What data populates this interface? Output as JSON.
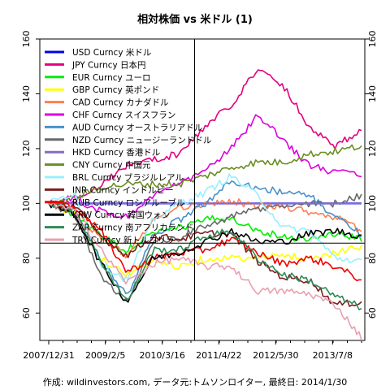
{
  "chart_data": {
    "type": "line",
    "title": "相対株価 vs 米ドル (1)",
    "caption": "作成: wildinvestors.com, データ元:トムソンロイター, 最終日: 2014/1/30",
    "xlabel": "",
    "ylabel": "",
    "x_ticks": [
      "2007/12/31",
      "2009/2/5",
      "2010/3/16",
      "2011/4/22",
      "2012/5/30",
      "2013/7/8"
    ],
    "x_range": [
      "2007/12/31",
      "2014/1/30"
    ],
    "ylim": [
      50,
      160
    ],
    "y_ticks": [
      60,
      80,
      100,
      120,
      140,
      160
    ],
    "reference_lines": {
      "horizontal": 85.5,
      "vertical": "2010/11/01"
    },
    "legend_position": "top-left",
    "grid": false,
    "series": [
      {
        "name": "USD Curncy 米ドル",
        "color": "#0000ee",
        "values": [
          100,
          100,
          100,
          100,
          100,
          100,
          100,
          100,
          100,
          100,
          100,
          100,
          100
        ]
      },
      {
        "name": "JPY Curncy 日本円",
        "color": "#e4007f",
        "values": [
          100,
          101,
          107,
          114,
          116,
          118,
          128,
          136,
          149,
          143,
          128,
          121,
          127
        ]
      },
      {
        "name": "EUR Curncy ユーロ",
        "color": "#00ee00",
        "values": [
          100,
          96,
          88,
          83,
          89,
          91,
          94,
          95,
          90,
          88,
          87,
          89,
          87
        ]
      },
      {
        "name": "GBP Curncy 英ポンド",
        "color": "#ffff00",
        "values": [
          100,
          96,
          80,
          74,
          79,
          77,
          80,
          80,
          80,
          81,
          80,
          82,
          84
        ]
      },
      {
        "name": "CAD Curncy カナダドル",
        "color": "#ff7f50",
        "values": [
          100,
          97,
          87,
          81,
          94,
          98,
          100,
          101,
          99,
          99,
          97,
          95,
          90
        ]
      },
      {
        "name": "CHF Curncy スイスフラン",
        "color": "#dd00dd",
        "values": [
          100,
          102,
          97,
          95,
          103,
          107,
          112,
          120,
          132,
          123,
          114,
          111,
          111
        ]
      },
      {
        "name": "AUD Curncy オーストラリアドル",
        "color": "#4a90c8",
        "values": [
          100,
          97,
          79,
          66,
          88,
          94,
          100,
          108,
          106,
          104,
          103,
          95,
          89
        ]
      },
      {
        "name": "NZD Curncy ニュージーランドドル",
        "color": "#696969",
        "values": [
          100,
          96,
          73,
          64,
          86,
          87,
          92,
          95,
          98,
          99,
          100,
          100,
          103
        ]
      },
      {
        "name": "HKD Curncy 香港ドル",
        "color": "#8a6bc0",
        "values": [
          100,
          100,
          100,
          100,
          100,
          100,
          100,
          100,
          100,
          100,
          100,
          100,
          100
        ]
      },
      {
        "name": "CNY Curncy 中国元",
        "color": "#6b8e23",
        "values": [
          100,
          102,
          106,
          107,
          107,
          107,
          110,
          113,
          115,
          115,
          118,
          119,
          121
        ]
      },
      {
        "name": "BRL Curncy ブラジルレアル",
        "color": "#99eeff",
        "values": [
          100,
          104,
          78,
          72,
          94,
          100,
          104,
          110,
          103,
          91,
          90,
          80,
          79
        ]
      },
      {
        "name": "INR Curncy インドルピー",
        "color": "#7f1f1f",
        "values": [
          100,
          99,
          88,
          81,
          88,
          87,
          89,
          89,
          79,
          73,
          72,
          63,
          64
        ]
      },
      {
        "name": "RUB Curncy ロシアルーブル",
        "color": "#ee0000",
        "values": [
          100,
          99,
          90,
          75,
          80,
          82,
          83,
          87,
          82,
          78,
          80,
          77,
          72
        ]
      },
      {
        "name": "KRW Curncy 韓国ウォン",
        "color": "#000000",
        "values": [
          100,
          96,
          78,
          64,
          80,
          82,
          86,
          90,
          86,
          86,
          89,
          90,
          88
        ]
      },
      {
        "name": "ZAR Curncy 南アフリカランド",
        "color": "#2e8b57",
        "values": [
          100,
          98,
          79,
          64,
          83,
          83,
          88,
          90,
          80,
          74,
          72,
          66,
          62
        ]
      },
      {
        "name": "TRY Curncy 新トルコリラ",
        "color": "#e8a0b0",
        "values": [
          100,
          97,
          83,
          71,
          78,
          80,
          77,
          77,
          68,
          68,
          67,
          63,
          51
        ]
      }
    ]
  }
}
